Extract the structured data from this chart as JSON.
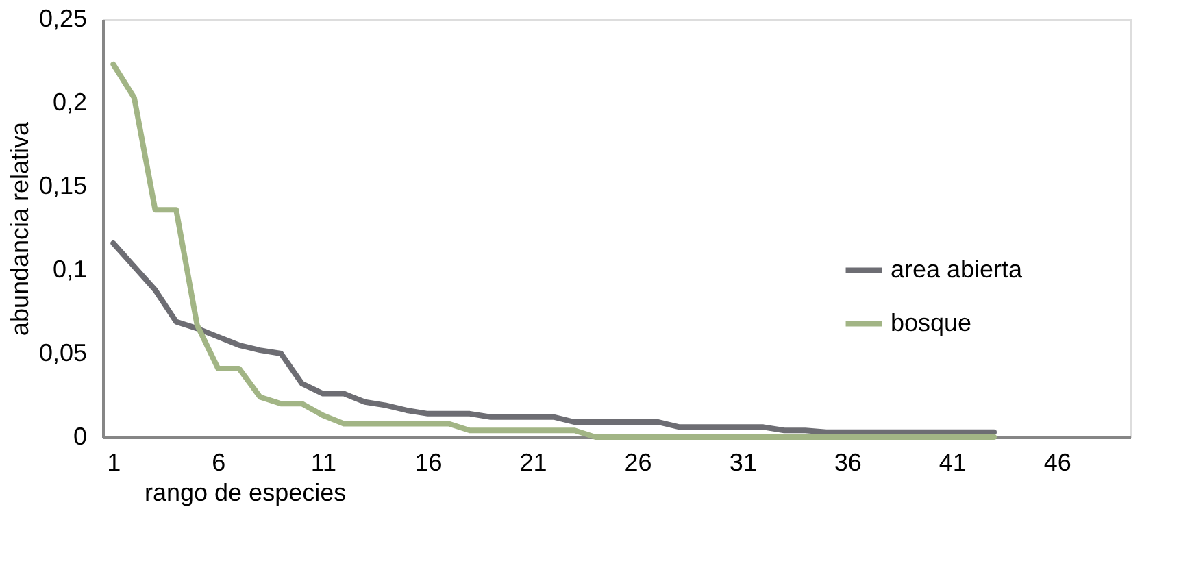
{
  "chart_data": {
    "type": "line",
    "xlabel": "rango de especies",
    "ylabel": "abundancia relativa",
    "x": [
      1,
      2,
      3,
      4,
      5,
      6,
      7,
      8,
      9,
      10,
      11,
      12,
      13,
      14,
      15,
      16,
      17,
      18,
      19,
      20,
      21,
      22,
      23,
      24,
      25,
      26,
      27,
      28,
      29,
      30,
      31,
      32,
      33,
      34,
      35,
      36,
      37,
      38,
      39,
      40,
      41,
      42,
      43
    ],
    "series": [
      {
        "name": "area abierta",
        "color": "#6d6d73",
        "values": [
          0.116,
          0.102,
          0.088,
          0.069,
          0.065,
          0.06,
          0.055,
          0.052,
          0.05,
          0.032,
          0.026,
          0.026,
          0.021,
          0.019,
          0.016,
          0.014,
          0.014,
          0.014,
          0.012,
          0.012,
          0.012,
          0.012,
          0.009,
          0.009,
          0.009,
          0.009,
          0.009,
          0.006,
          0.006,
          0.006,
          0.006,
          0.006,
          0.004,
          0.004,
          0.003,
          0.003,
          0.003,
          0.003,
          0.003,
          0.003,
          0.003,
          0.003,
          0.003
        ]
      },
      {
        "name": "bosque",
        "color": "#a2b585",
        "values": [
          0.223,
          0.203,
          0.136,
          0.136,
          0.067,
          0.041,
          0.041,
          0.024,
          0.02,
          0.02,
          0.013,
          0.008,
          0.008,
          0.008,
          0.008,
          0.008,
          0.008,
          0.004,
          0.004,
          0.004,
          0.004,
          0.004,
          0.004,
          0,
          0,
          0,
          0,
          0,
          0,
          0,
          0,
          0,
          0,
          0,
          0,
          0,
          0,
          0,
          0,
          0,
          0,
          0,
          0
        ]
      }
    ],
    "xlim": [
      0.5,
      49.5
    ],
    "xticks": [
      1,
      6,
      11,
      16,
      21,
      26,
      31,
      36,
      41,
      46
    ],
    "ylim": [
      0,
      0.25
    ],
    "yticks": [
      {
        "value": 0,
        "label": "0"
      },
      {
        "value": 0.05,
        "label": "0,05"
      },
      {
        "value": 0.1,
        "label": "0,1"
      },
      {
        "value": 0.15,
        "label": "0,15"
      },
      {
        "value": 0.2,
        "label": "0,2"
      },
      {
        "value": 0.25,
        "label": "0,25"
      }
    ],
    "grid": false,
    "legend": "right",
    "marker": "none",
    "line_style": "solid"
  }
}
